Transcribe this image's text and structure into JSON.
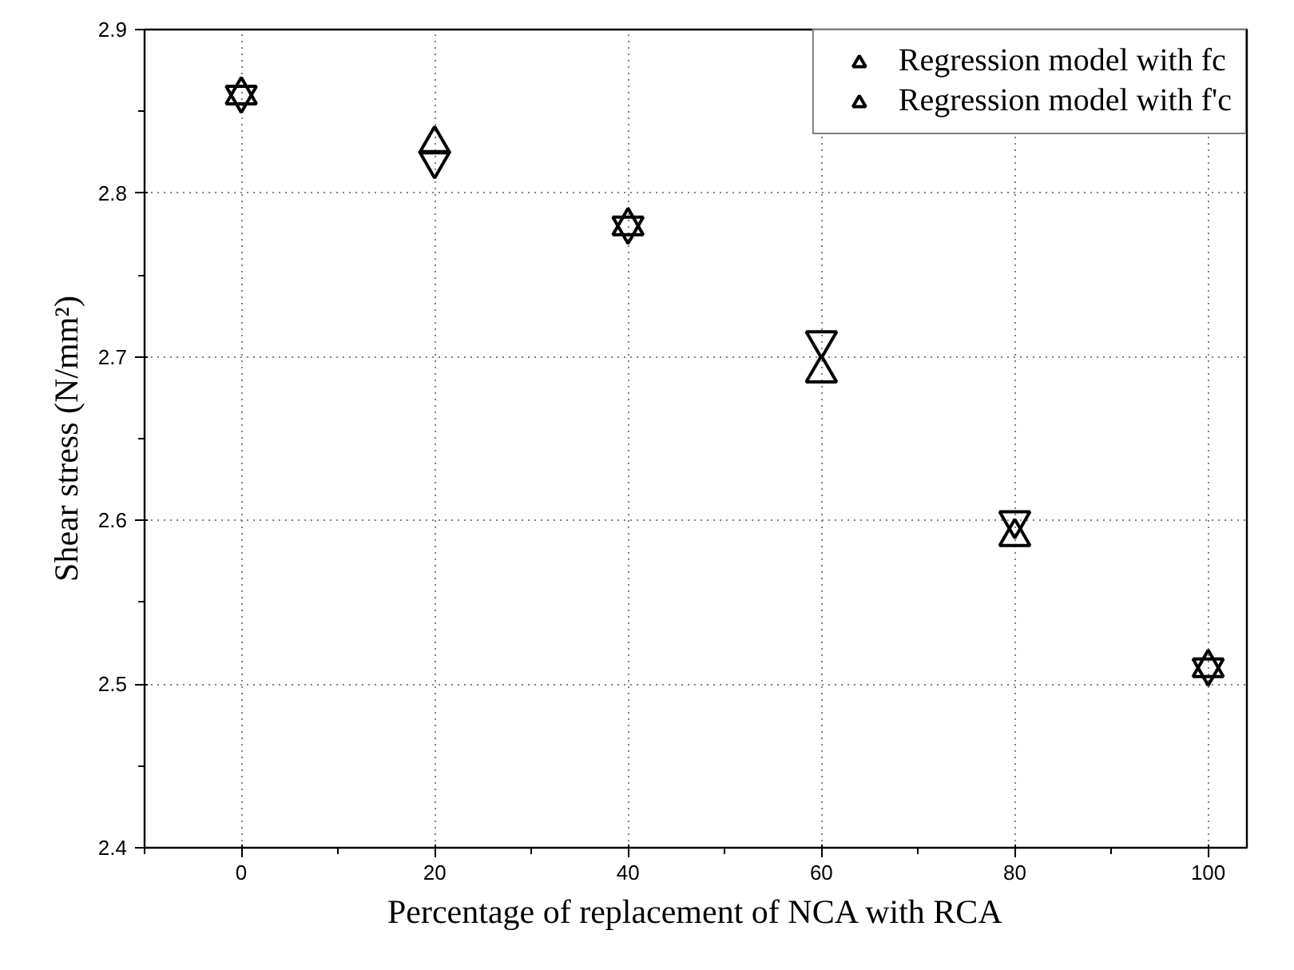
{
  "chart_data": {
    "type": "scatter",
    "xlabel": "Percentage of replacement of NCA with RCA",
    "ylabel": "Shear stress (N/mm²)",
    "x": [
      0,
      20,
      40,
      60,
      80,
      100
    ],
    "series": [
      {
        "name": "Regression model with fc",
        "color": "#000000",
        "marker": "triangle",
        "values": [
          2.86,
          2.83,
          2.78,
          2.69,
          2.59,
          2.51
        ]
      },
      {
        "name": "Regression model with f'c",
        "color": "#000000",
        "marker": "triangle",
        "values": [
          2.86,
          2.82,
          2.78,
          2.71,
          2.6,
          2.51
        ]
      }
    ],
    "xlim": [
      -10,
      104
    ],
    "ylim": [
      2.4,
      2.9
    ],
    "xticks": [
      0,
      20,
      40,
      60,
      80,
      100
    ],
    "yticks": [
      {
        "value": 2.4,
        "label": "2.4"
      },
      {
        "value": 2.5,
        "label": "2.5"
      },
      {
        "value": 2.6,
        "label": "2.6"
      },
      {
        "value": 2.7,
        "label": "2.7"
      },
      {
        "value": 2.8,
        "label": "2.8"
      },
      {
        "value": 2.9,
        "label": "2.9"
      }
    ],
    "grid": true,
    "legend": "top right"
  }
}
